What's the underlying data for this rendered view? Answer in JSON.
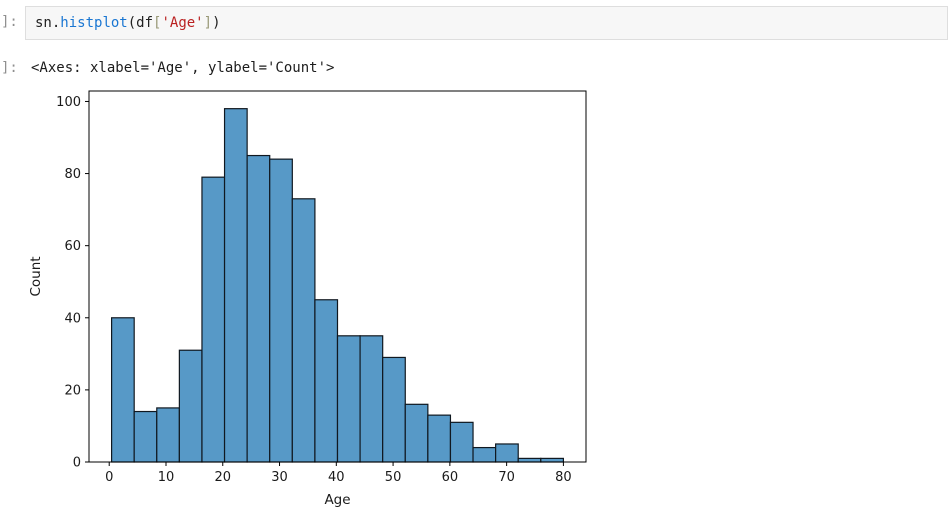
{
  "notebook": {
    "input_prompt": "]:",
    "output_prompt": "]:",
    "code_tokens": [
      {
        "text": "sn",
        "type": "name"
      },
      {
        "text": ".",
        "type": "punct"
      },
      {
        "text": "histplot",
        "type": "function"
      },
      {
        "text": "(",
        "type": "punct"
      },
      {
        "text": "df",
        "type": "name"
      },
      {
        "text": "[",
        "type": "bracket"
      },
      {
        "text": "'Age'",
        "type": "string"
      },
      {
        "text": "]",
        "type": "bracket"
      },
      {
        "text": ")",
        "type": "punct"
      }
    ],
    "output_text": "<Axes: xlabel='Age', ylabel='Count'>"
  },
  "chart_data": {
    "type": "bar",
    "subtype": "histogram",
    "title": "",
    "xlabel": "Age",
    "ylabel": "Count",
    "bin_start": 0.42,
    "bin_width": 3.979,
    "counts": [
      40,
      14,
      15,
      31,
      79,
      98,
      85,
      84,
      73,
      45,
      35,
      35,
      29,
      16,
      13,
      11,
      4,
      5,
      1,
      1
    ],
    "x_ticks": [
      0,
      10,
      20,
      30,
      40,
      50,
      60,
      70,
      80
    ],
    "y_ticks": [
      0,
      20,
      40,
      60,
      80,
      100
    ],
    "xlim": [
      -3.56,
      83.98
    ],
    "ylim": [
      0,
      102.9
    ],
    "grid": false,
    "legend": "none",
    "bar_color": "#5799c7",
    "bar_edge_color": "#101820",
    "spine_color": "#000000"
  }
}
